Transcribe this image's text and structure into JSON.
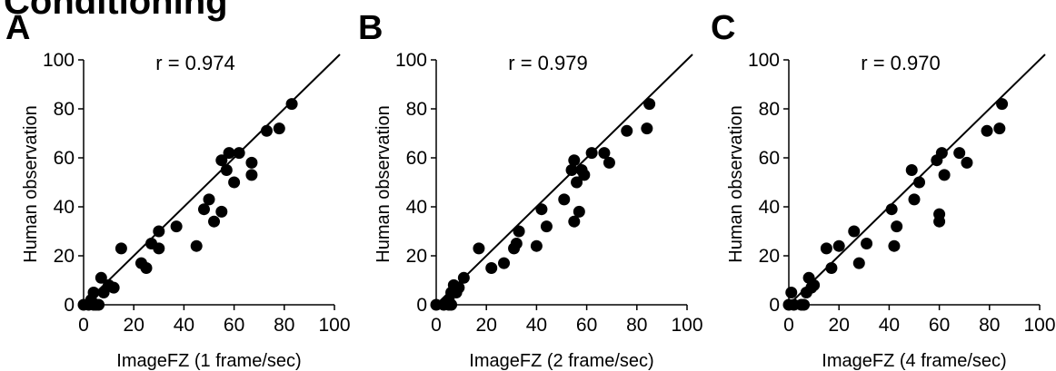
{
  "page": {
    "heading": "Conditioning"
  },
  "chart_data": [
    {
      "panel": "A",
      "type": "scatter",
      "annotation": "r = 0.974",
      "xlabel": "ImageFZ (1 frame/sec)",
      "ylabel": "Human observation",
      "xlim": [
        0,
        100
      ],
      "ylim": [
        0,
        100
      ],
      "xticks": [
        0,
        20,
        40,
        60,
        80,
        100
      ],
      "yticks": [
        0,
        20,
        40,
        60,
        80,
        100
      ],
      "fit_line": [
        [
          0,
          0
        ],
        [
          100,
          100
        ]
      ],
      "points": [
        [
          0,
          0
        ],
        [
          2,
          0
        ],
        [
          3,
          2
        ],
        [
          4,
          5
        ],
        [
          4,
          0
        ],
        [
          5,
          0
        ],
        [
          6,
          0
        ],
        [
          7,
          11
        ],
        [
          8,
          5
        ],
        [
          10,
          8
        ],
        [
          12,
          7
        ],
        [
          15,
          23
        ],
        [
          23,
          17
        ],
        [
          25,
          15
        ],
        [
          27,
          25
        ],
        [
          30,
          23
        ],
        [
          30,
          30
        ],
        [
          37,
          32
        ],
        [
          45,
          24
        ],
        [
          48,
          39
        ],
        [
          50,
          43
        ],
        [
          52,
          34
        ],
        [
          55,
          38
        ],
        [
          55,
          59
        ],
        [
          57,
          55
        ],
        [
          58,
          62
        ],
        [
          60,
          50
        ],
        [
          62,
          62
        ],
        [
          67,
          58
        ],
        [
          67,
          53
        ],
        [
          73,
          71
        ],
        [
          78,
          72
        ],
        [
          83,
          82
        ]
      ]
    },
    {
      "panel": "B",
      "type": "scatter",
      "annotation": "r = 0.979",
      "xlabel": "ImageFZ (2 frame/sec)",
      "ylabel": "Human observation",
      "xlim": [
        0,
        100
      ],
      "ylim": [
        0,
        100
      ],
      "xticks": [
        0,
        20,
        40,
        60,
        80,
        100
      ],
      "yticks": [
        0,
        20,
        40,
        60,
        80,
        100
      ],
      "fit_line": [
        [
          0,
          0
        ],
        [
          100,
          100
        ]
      ],
      "points": [
        [
          0,
          0
        ],
        [
          3,
          0
        ],
        [
          5,
          0
        ],
        [
          5,
          2
        ],
        [
          6,
          0
        ],
        [
          6,
          5
        ],
        [
          7,
          8
        ],
        [
          8,
          5
        ],
        [
          9,
          7
        ],
        [
          11,
          11
        ],
        [
          17,
          23
        ],
        [
          22,
          15
        ],
        [
          27,
          17
        ],
        [
          31,
          23
        ],
        [
          32,
          25
        ],
        [
          33,
          30
        ],
        [
          40,
          24
        ],
        [
          42,
          39
        ],
        [
          44,
          32
        ],
        [
          51,
          43
        ],
        [
          54,
          55
        ],
        [
          55,
          34
        ],
        [
          55,
          59
        ],
        [
          56,
          50
        ],
        [
          57,
          38
        ],
        [
          58,
          55
        ],
        [
          59,
          53
        ],
        [
          62,
          62
        ],
        [
          67,
          62
        ],
        [
          69,
          58
        ],
        [
          76,
          71
        ],
        [
          84,
          72
        ],
        [
          85,
          82
        ]
      ]
    },
    {
      "panel": "C",
      "type": "scatter",
      "annotation": "r = 0.970",
      "xlabel": "ImageFZ (4 frame/sec)",
      "ylabel": "Human observation",
      "xlim": [
        0,
        100
      ],
      "ylim": [
        0,
        100
      ],
      "xticks": [
        0,
        20,
        40,
        60,
        80,
        100
      ],
      "yticks": [
        0,
        20,
        40,
        60,
        80,
        100
      ],
      "fit_line": [
        [
          0,
          0
        ],
        [
          100,
          100
        ]
      ],
      "points": [
        [
          0,
          0
        ],
        [
          1,
          5
        ],
        [
          2,
          0
        ],
        [
          5,
          0
        ],
        [
          6,
          0
        ],
        [
          7,
          5
        ],
        [
          8,
          11
        ],
        [
          9,
          7
        ],
        [
          10,
          8
        ],
        [
          15,
          23
        ],
        [
          17,
          15
        ],
        [
          20,
          24
        ],
        [
          26,
          30
        ],
        [
          28,
          17
        ],
        [
          31,
          25
        ],
        [
          41,
          39
        ],
        [
          42,
          24
        ],
        [
          43,
          32
        ],
        [
          49,
          55
        ],
        [
          50,
          43
        ],
        [
          52,
          50
        ],
        [
          59,
          59
        ],
        [
          60,
          34
        ],
        [
          60,
          37
        ],
        [
          61,
          62
        ],
        [
          62,
          53
        ],
        [
          68,
          62
        ],
        [
          71,
          58
        ],
        [
          79,
          71
        ],
        [
          84,
          72
        ],
        [
          85,
          82
        ]
      ]
    }
  ]
}
